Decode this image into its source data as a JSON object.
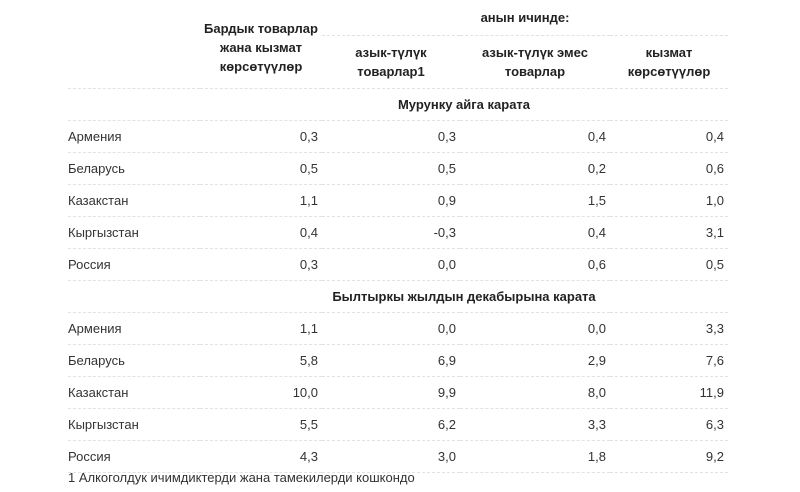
{
  "header": {
    "col_total": "Бардык товарлар жана кызмат көрсөтүүлөр",
    "group": "анын ичинде:",
    "col_food": "азык-түлүк товарлар1",
    "col_nonfood": "азык-түлүк эмес товарлар",
    "col_services": "кызмат көрсөтүүлөр"
  },
  "sections": [
    {
      "title": "Мурунку айга карата",
      "rows": [
        {
          "name": "Армения",
          "v": [
            "0,3",
            "0,3",
            "0,4",
            "0,4"
          ]
        },
        {
          "name": "Беларусь",
          "v": [
            "0,5",
            "0,5",
            "0,2",
            "0,6"
          ]
        },
        {
          "name": "Казакстан",
          "v": [
            "1,1",
            "0,9",
            "1,5",
            "1,0"
          ]
        },
        {
          "name": "Кыргызстан",
          "v": [
            "0,4",
            "-0,3",
            "0,4",
            "3,1"
          ]
        },
        {
          "name": "Россия",
          "v": [
            "0,3",
            "0,0",
            "0,6",
            "0,5"
          ]
        }
      ]
    },
    {
      "title": "Былтыркы жылдын декабырына карата",
      "rows": [
        {
          "name": "Армения",
          "v": [
            "1,1",
            "0,0",
            "0,0",
            "3,3"
          ]
        },
        {
          "name": "Беларусь",
          "v": [
            "5,8",
            "6,9",
            "2,9",
            "7,6"
          ]
        },
        {
          "name": "Казакстан",
          "v": [
            "10,0",
            "9,9",
            "8,0",
            "11,9"
          ]
        },
        {
          "name": "Кыргызстан",
          "v": [
            "5,5",
            "6,2",
            "3,3",
            "6,3"
          ]
        },
        {
          "name": "Россия",
          "v": [
            "4,3",
            "3,0",
            "1,8",
            "9,2"
          ]
        }
      ]
    }
  ],
  "footnote": "1 Алкоголдук ичимдиктерди жана тамекилерди кошкондо"
}
